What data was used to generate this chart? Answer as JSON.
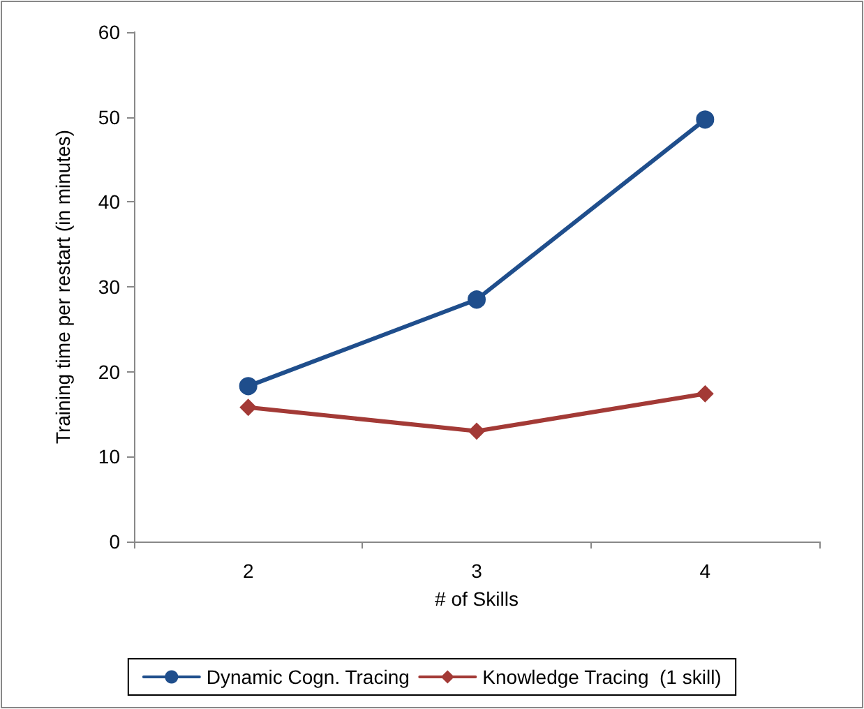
{
  "chart_data": {
    "type": "line",
    "xlabel": "# of Skills",
    "ylabel": "Training time per restart (in minutes)",
    "categories": [
      "2",
      "3",
      "4"
    ],
    "series": [
      {
        "name": "Dynamic Cogn. Tracing",
        "color": "#1f4e8c",
        "marker": "circle",
        "values": [
          18.3,
          28.5,
          49.7
        ]
      },
      {
        "name": "Knowledge Tracing  (1 skill)",
        "color": "#a33a36",
        "marker": "diamond",
        "values": [
          15.8,
          13.0,
          17.4
        ]
      }
    ],
    "ylim": [
      0,
      60
    ],
    "yticks": [
      0,
      10,
      20,
      30,
      40,
      50,
      60
    ],
    "grid": false,
    "legend": "bottom",
    "line_style": "solid"
  }
}
